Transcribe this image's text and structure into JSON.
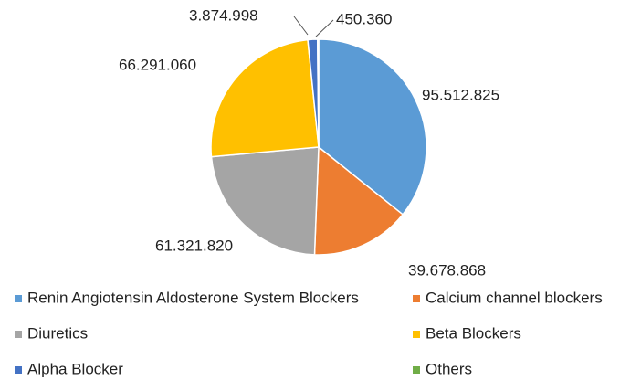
{
  "chart_data": {
    "type": "pie",
    "categories": [
      "Renin Angiotensin Aldosterone System Blockers",
      "Calcium channel blockers",
      "Diuretics",
      "Beta Blockers",
      "Alpha Blocker",
      "Others"
    ],
    "values": [
      95512825,
      39678868,
      61321820,
      66291060,
      3874998,
      450360
    ],
    "value_labels": [
      "95.512.825",
      "39.678.868",
      "61.321.820",
      "66.291.060",
      "3.874.998",
      "450.360"
    ],
    "colors": [
      "#5b9bd5",
      "#ed7d31",
      "#a5a5a5",
      "#ffc000",
      "#4472c4",
      "#70ad47"
    ],
    "legend": "bottom"
  }
}
